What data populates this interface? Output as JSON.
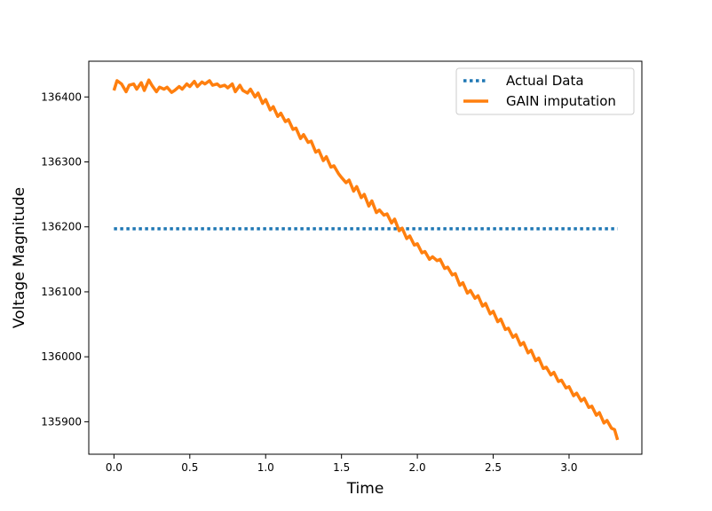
{
  "chart_data": {
    "type": "line",
    "xlabel": "Time",
    "ylabel": "Voltage Magnitude",
    "xlim": [
      -0.166,
      3.48
    ],
    "ylim": [
      135850,
      136455
    ],
    "x_ticks": [
      0.0,
      0.5,
      1.0,
      1.5,
      2.0,
      2.5,
      3.0
    ],
    "x_tick_labels": [
      "0.0",
      "0.5",
      "1.0",
      "1.5",
      "2.0",
      "2.5",
      "3.0"
    ],
    "y_ticks": [
      135900,
      136000,
      136100,
      136200,
      136300,
      136400
    ],
    "y_tick_labels": [
      "135900",
      "136000",
      "136100",
      "136200",
      "136300",
      "136400"
    ],
    "grid": false,
    "legend_position": "top-right",
    "series": [
      {
        "name": "Actual Data",
        "color": "#1f77b4",
        "style": "dotted",
        "x": [
          0.0,
          3.32
        ],
        "y": [
          136197,
          136197
        ]
      },
      {
        "name": "GAIN imputation",
        "color": "#ff7f0e",
        "style": "solid",
        "x": [
          0.0,
          0.02,
          0.05,
          0.08,
          0.1,
          0.13,
          0.15,
          0.18,
          0.2,
          0.23,
          0.25,
          0.28,
          0.3,
          0.33,
          0.35,
          0.38,
          0.4,
          0.43,
          0.45,
          0.48,
          0.5,
          0.53,
          0.55,
          0.58,
          0.6,
          0.63,
          0.65,
          0.68,
          0.7,
          0.73,
          0.75,
          0.78,
          0.8,
          0.83,
          0.85,
          0.88,
          0.9,
          0.93,
          0.95,
          0.98,
          1.0,
          1.03,
          1.05,
          1.08,
          1.1,
          1.13,
          1.15,
          1.18,
          1.2,
          1.23,
          1.25,
          1.28,
          1.3,
          1.33,
          1.35,
          1.38,
          1.4,
          1.43,
          1.45,
          1.48,
          1.5,
          1.53,
          1.55,
          1.58,
          1.6,
          1.63,
          1.65,
          1.68,
          1.7,
          1.73,
          1.75,
          1.78,
          1.8,
          1.83,
          1.85,
          1.88,
          1.9,
          1.93,
          1.95,
          1.98,
          2.0,
          2.03,
          2.05,
          2.08,
          2.1,
          2.13,
          2.15,
          2.18,
          2.2,
          2.23,
          2.25,
          2.28,
          2.3,
          2.33,
          2.35,
          2.38,
          2.4,
          2.43,
          2.45,
          2.48,
          2.5,
          2.53,
          2.55,
          2.58,
          2.6,
          2.63,
          2.65,
          2.68,
          2.7,
          2.73,
          2.75,
          2.78,
          2.8,
          2.83,
          2.85,
          2.88,
          2.9,
          2.93,
          2.95,
          2.98,
          3.0,
          3.03,
          3.05,
          3.08,
          3.1,
          3.13,
          3.15,
          3.18,
          3.2,
          3.23,
          3.25,
          3.28,
          3.3,
          3.32
        ],
        "y": [
          136410,
          136425,
          136420,
          136408,
          136418,
          136420,
          136412,
          136422,
          136410,
          136426,
          136418,
          136408,
          136415,
          136412,
          136415,
          136407,
          136410,
          136416,
          136412,
          136420,
          136416,
          136424,
          136416,
          136423,
          136420,
          136425,
          136418,
          136420,
          136416,
          136418,
          136414,
          136420,
          136408,
          136418,
          136410,
          136406,
          136412,
          136400,
          136406,
          136390,
          136396,
          136380,
          136385,
          136370,
          136375,
          136362,
          136365,
          136350,
          136352,
          136336,
          136342,
          136330,
          136332,
          136315,
          136318,
          136302,
          136308,
          136292,
          136294,
          136282,
          136276,
          136268,
          136272,
          136255,
          136262,
          136245,
          136250,
          136232,
          136240,
          136222,
          136226,
          136218,
          136220,
          136206,
          136212,
          136194,
          136198,
          136182,
          136186,
          136172,
          136174,
          136160,
          136162,
          136150,
          136154,
          136148,
          136150,
          136136,
          136138,
          136126,
          136128,
          136110,
          136114,
          136098,
          136102,
          136090,
          136094,
          136078,
          136082,
          136066,
          136070,
          136054,
          136058,
          136042,
          136044,
          136030,
          136034,
          136018,
          136022,
          136006,
          136010,
          135994,
          135998,
          135982,
          135984,
          135972,
          135976,
          135962,
          135964,
          135952,
          135954,
          135940,
          135944,
          135932,
          135936,
          135922,
          135924,
          135910,
          135914,
          135898,
          135902,
          135890,
          135888,
          135872
        ]
      }
    ]
  }
}
